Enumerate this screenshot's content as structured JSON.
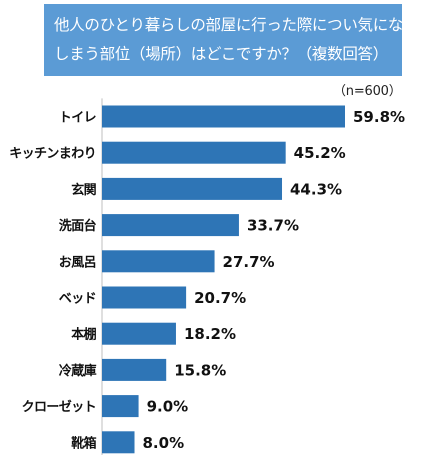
{
  "title_lines": [
    "他人のひとり暮らしの部屋に行った際につい気になって",
    "しまう部位（場所）はどこですか？（複数回答）"
  ],
  "note": "（n=600）",
  "colors": {
    "bar": "#2e75b6",
    "title_bg": "#5b9bd5"
  },
  "chart_data": {
    "type": "bar",
    "orientation": "horizontal",
    "title": "他人のひとり暮らしの部屋に行った際につい気になってしまう部位（場所）はどこですか？（複数回答）",
    "categories": [
      "トイレ",
      "キッチンまわり",
      "玄関",
      "洗面台",
      "お風呂",
      "ベッド",
      "本棚",
      "冷蔵庫",
      "クローゼット",
      "靴箱"
    ],
    "values": [
      59.8,
      45.2,
      44.3,
      33.7,
      27.7,
      20.7,
      18.2,
      15.8,
      9.0,
      8.0
    ],
    "value_labels": [
      "59.8%",
      "45.2%",
      "44.3%",
      "33.7%",
      "27.7%",
      "20.7%",
      "18.2%",
      "15.8%",
      "9.0%",
      "8.0%"
    ],
    "unit": "%",
    "xlim": [
      0,
      59.8
    ],
    "grid": false,
    "legend": "none"
  }
}
